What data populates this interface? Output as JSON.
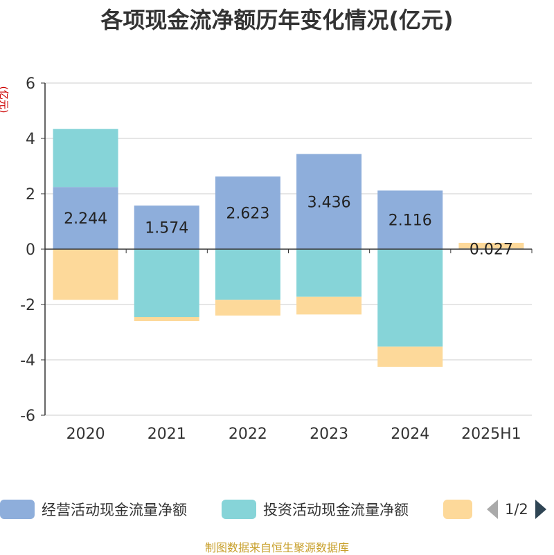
{
  "title": "各项现金流净额历年变化情况(亿元)",
  "unit_label": "(亿元)",
  "source": "制图数据来自恒生聚源数据库",
  "legend": {
    "items": [
      {
        "label": "经营活动现金流量净额",
        "color": "#8eaedb"
      },
      {
        "label": "投资活动现金流量净额",
        "color": "#86d4d8"
      },
      {
        "label": "",
        "color": "#fdd99a"
      }
    ],
    "page": "1/2"
  },
  "chart_data": {
    "type": "bar",
    "stacked": true,
    "categories": [
      "2020",
      "2021",
      "2022",
      "2023",
      "2024",
      "2025H1"
    ],
    "ylim": [
      -6,
      6
    ],
    "yticks": [
      6,
      4,
      2,
      0,
      -2,
      -4,
      -6
    ],
    "series": [
      {
        "name": "经营活动现金流量净额",
        "color": "#8eaedb",
        "values": [
          2.244,
          1.574,
          2.623,
          3.436,
          2.116,
          0.027
        ],
        "labels": [
          "2.244",
          "1.574",
          "2.623",
          "3.436",
          "2.116",
          "0.027"
        ]
      },
      {
        "name": "投资活动现金流量净额",
        "color": "#86d4d8",
        "values": [
          2.1,
          -2.45,
          -1.83,
          -1.72,
          -3.52,
          0.0
        ]
      },
      {
        "name": "",
        "color": "#fdd99a",
        "values": [
          -1.83,
          -0.15,
          -0.57,
          -0.64,
          -0.73,
          0.2
        ]
      }
    ]
  }
}
